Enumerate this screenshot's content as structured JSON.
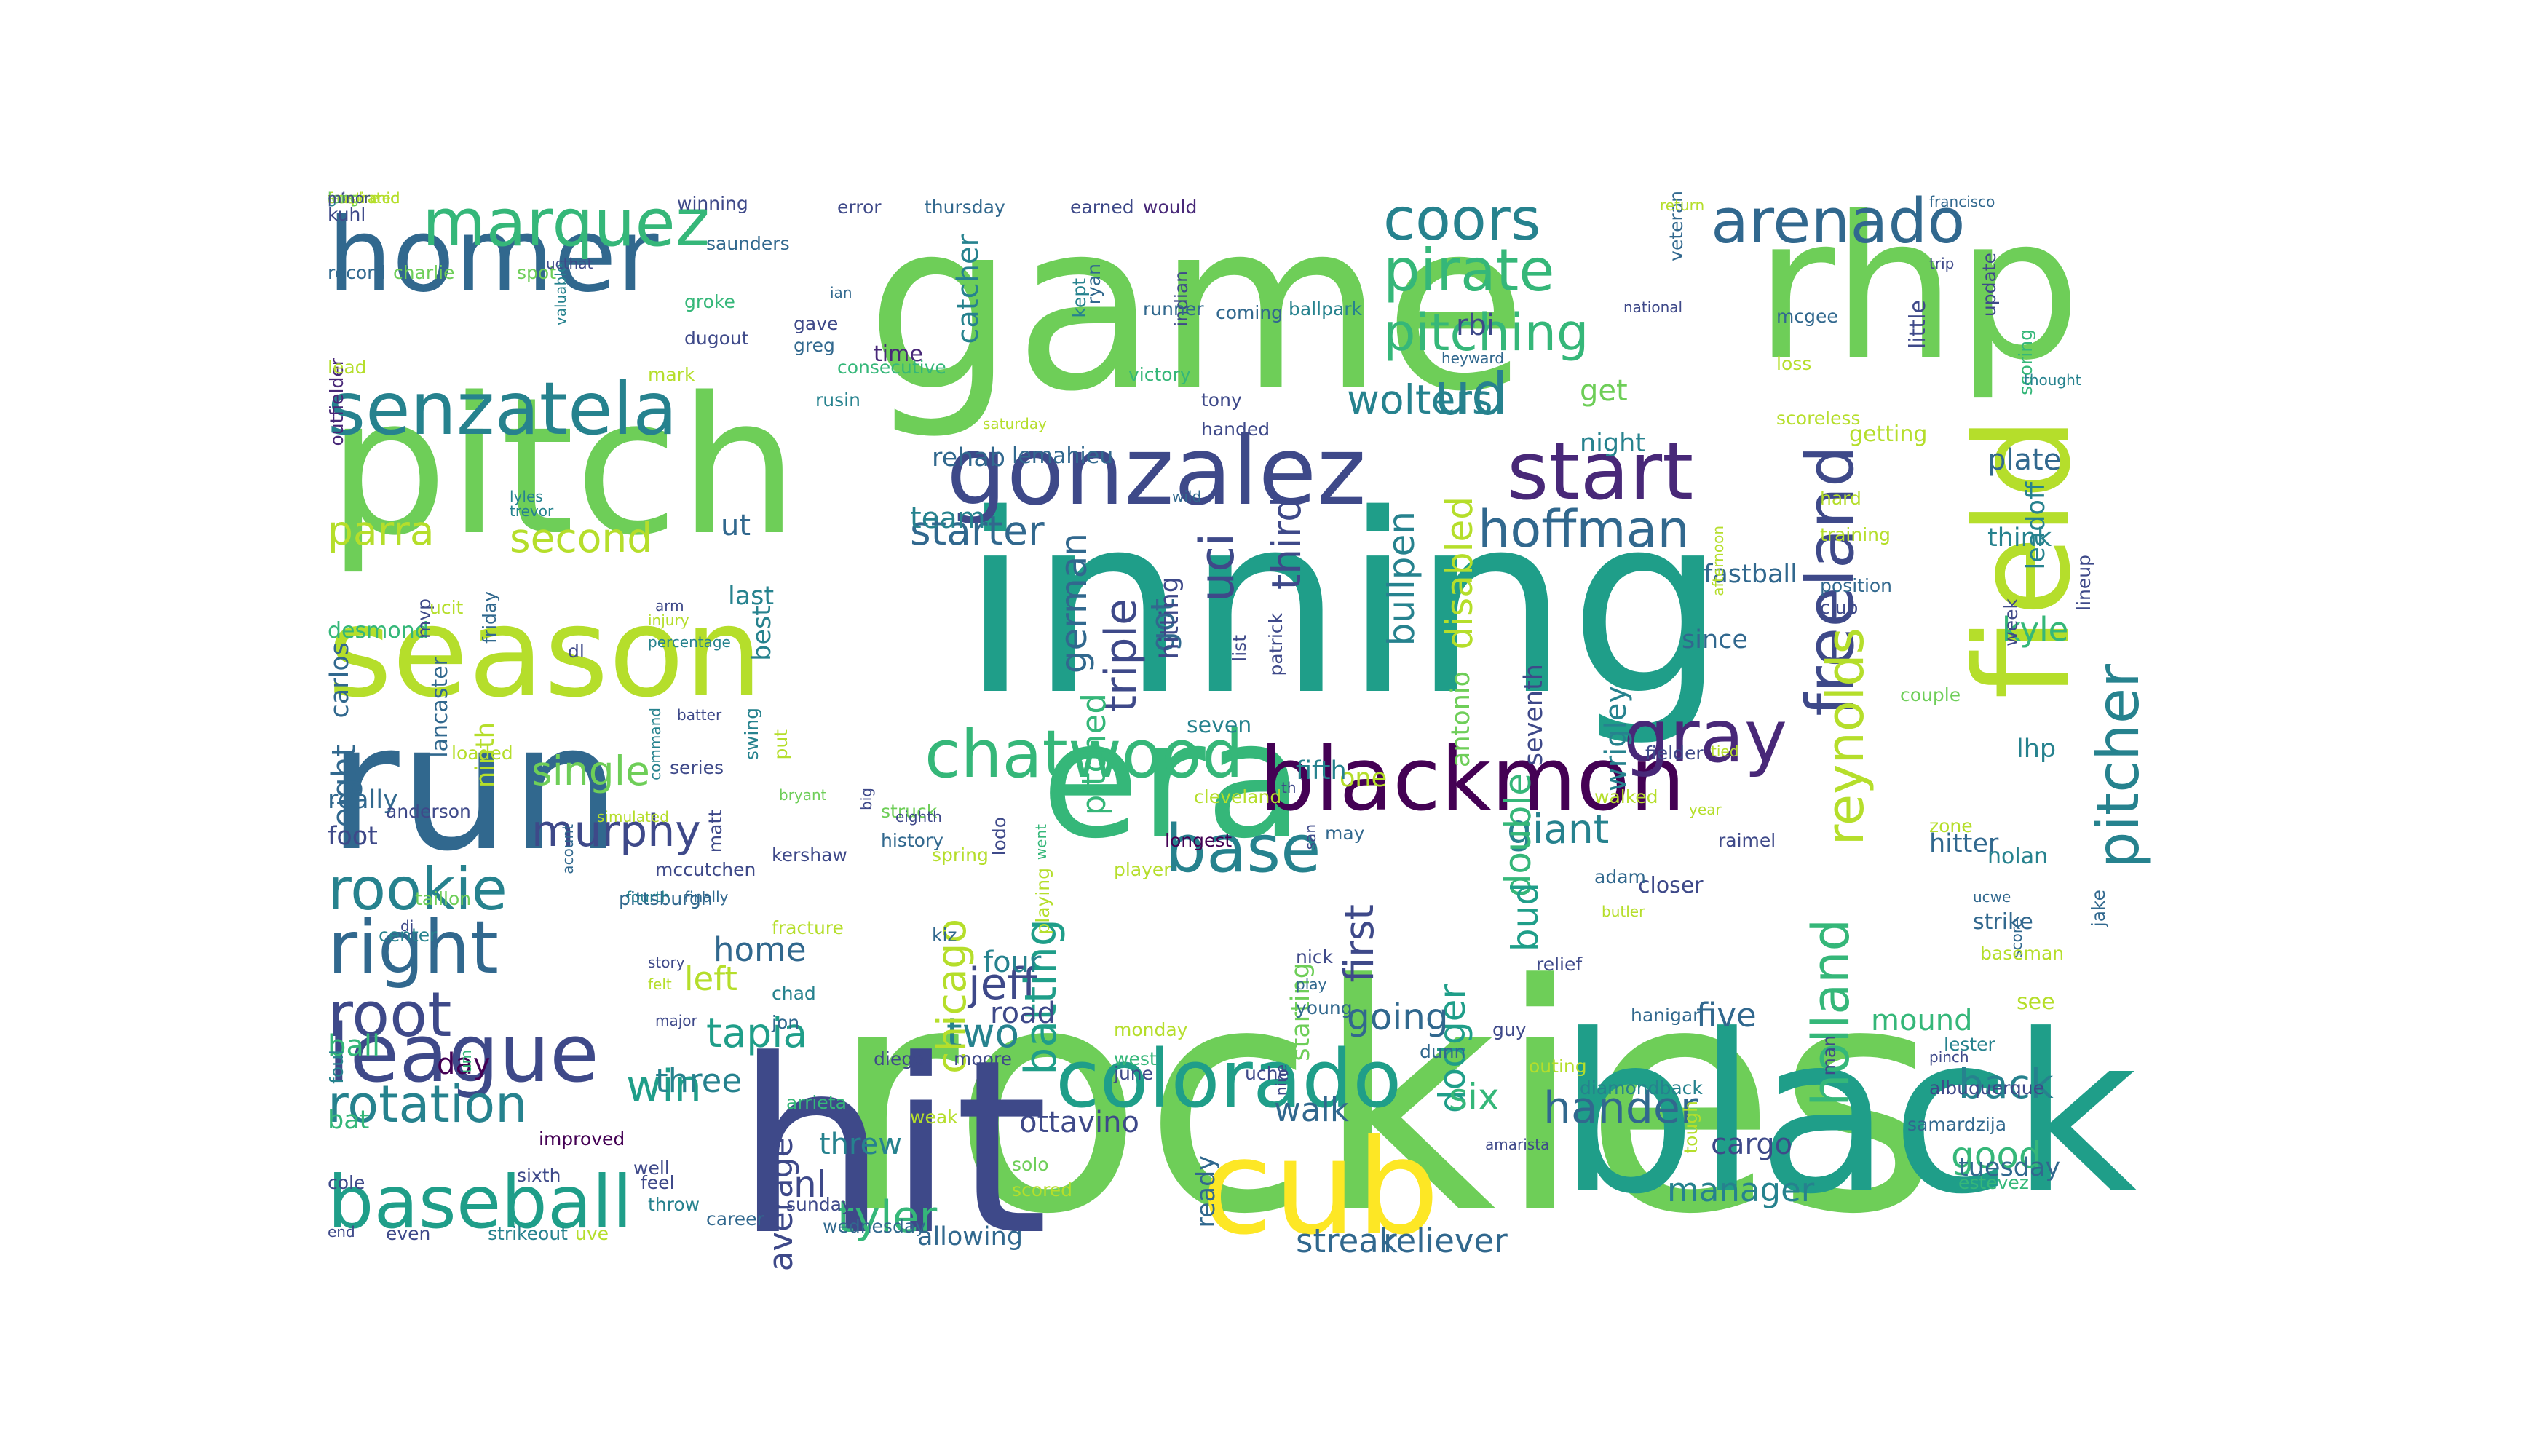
{
  "palette": [
    "#440154",
    "#482878",
    "#3e4989",
    "#31688e",
    "#26828e",
    "#1f9e89",
    "#35b779",
    "#6ece58",
    "#b5de2b",
    "#fde725"
  ],
  "words": [
    {
      "text": "rockies",
      "c": "#6ece58"
    },
    {
      "text": "inning",
      "c": "#1f9e89"
    },
    {
      "text": "game",
      "c": "#6ece58"
    },
    {
      "text": "hit",
      "c": "#3e4989"
    },
    {
      "text": "black",
      "c": "#1f9e89"
    },
    {
      "text": "pitch",
      "c": "#6ece58"
    },
    {
      "text": "rhp",
      "c": "#6ece58"
    },
    {
      "text": "run",
      "c": "#31688e"
    },
    {
      "text": "era",
      "c": "#35b779"
    },
    {
      "text": "cub",
      "c": "#fde725"
    },
    {
      "text": "season",
      "c": "#b5de2b"
    },
    {
      "text": "field",
      "c": "#b5de2b"
    },
    {
      "text": "homer",
      "c": "#31688e"
    },
    {
      "text": "gonzalez",
      "c": "#3e4989"
    },
    {
      "text": "blackmon",
      "c": "#440154"
    },
    {
      "text": "colorado",
      "c": "#1f9e89"
    },
    {
      "text": "league",
      "c": "#3e4989"
    },
    {
      "text": "senzatela",
      "c": "#26828e"
    },
    {
      "text": "start",
      "c": "#482878"
    },
    {
      "text": "baseball",
      "c": "#1f9e89"
    },
    {
      "text": "marquez",
      "c": "#35b779"
    },
    {
      "text": "chatwood",
      "c": "#35b779"
    },
    {
      "text": "right",
      "c": "#31688e"
    },
    {
      "text": "gray",
      "c": "#482878"
    },
    {
      "text": "pitcher",
      "c": "#26828e"
    },
    {
      "text": "holland",
      "c": "#35b779"
    },
    {
      "text": "arenado",
      "c": "#31688e"
    },
    {
      "text": "base",
      "c": "#26828e"
    },
    {
      "text": "freeland",
      "c": "#3e4989"
    },
    {
      "text": "coors",
      "c": "#26828e"
    },
    {
      "text": "pirate",
      "c": "#35b779"
    },
    {
      "text": "pitching",
      "c": "#35b779"
    },
    {
      "text": "rookie",
      "c": "#26828e"
    },
    {
      "text": "root",
      "c": "#3e4989"
    },
    {
      "text": "reynolds",
      "c": "#b5de2b"
    },
    {
      "text": "ud",
      "c": "#26828e"
    },
    {
      "text": "rotation",
      "c": "#26828e"
    },
    {
      "text": "hoffman",
      "c": "#31688e"
    },
    {
      "text": "murphy",
      "c": "#3e4989"
    },
    {
      "text": "tyler",
      "c": "#35b779"
    },
    {
      "text": "hander",
      "c": "#31688e"
    },
    {
      "text": "giant",
      "c": "#26828e"
    },
    {
      "text": "single",
      "c": "#6ece58"
    },
    {
      "text": "jeff",
      "c": "#3e4989"
    },
    {
      "text": "two",
      "c": "#26828e"
    },
    {
      "text": "parra",
      "c": "#b5de2b"
    },
    {
      "text": "second",
      "c": "#b5de2b"
    },
    {
      "text": "wolters",
      "c": "#26828e"
    },
    {
      "text": "starter",
      "c": "#31688e"
    },
    {
      "text": "uci",
      "c": "#3e4989"
    },
    {
      "text": "triple",
      "c": "#3e4989"
    },
    {
      "text": "third",
      "c": "#3e4989"
    },
    {
      "text": "bullpen",
      "c": "#26828e"
    },
    {
      "text": "disabled",
      "c": "#b5de2b"
    },
    {
      "text": "double",
      "c": "#35b779"
    },
    {
      "text": "dodger",
      "c": "#1f9e89"
    },
    {
      "text": "bud",
      "c": "#1f9e89"
    },
    {
      "text": "first",
      "c": "#3e4989"
    },
    {
      "text": "going",
      "c": "#31688e"
    },
    {
      "text": "batting",
      "c": "#1f9e89"
    },
    {
      "text": "chicago",
      "c": "#b5de2b"
    },
    {
      "text": "german",
      "c": "#31688e"
    },
    {
      "text": "pitched",
      "c": "#35b779"
    },
    {
      "text": "win",
      "c": "#1f9e89"
    },
    {
      "text": "threw",
      "c": "#26828e"
    },
    {
      "text": "nl",
      "c": "#3e4989"
    },
    {
      "text": "six",
      "c": "#35b779"
    },
    {
      "text": "walk",
      "c": "#31688e"
    },
    {
      "text": "back",
      "c": "#26828e"
    },
    {
      "text": "good",
      "c": "#35b779"
    },
    {
      "text": "manager",
      "c": "#26828e"
    },
    {
      "text": "reliever",
      "c": "#31688e"
    },
    {
      "text": "streak",
      "c": "#31688e"
    },
    {
      "text": "tuesday",
      "c": "#31688e"
    },
    {
      "text": "cargo",
      "c": "#3e4989"
    },
    {
      "text": "ottavino",
      "c": "#3e4989"
    },
    {
      "text": "five",
      "c": "#31688e"
    },
    {
      "text": "mound",
      "c": "#35b779"
    },
    {
      "text": "strike",
      "c": "#31688e"
    },
    {
      "text": "hitter",
      "c": "#31688e"
    },
    {
      "text": "nolan",
      "c": "#26828e"
    },
    {
      "text": "closer",
      "c": "#3e4989"
    },
    {
      "text": "plate",
      "c": "#31688e"
    },
    {
      "text": "think",
      "c": "#26828e"
    },
    {
      "text": "kyle",
      "c": "#35b779"
    },
    {
      "text": "lhp",
      "c": "#26828e"
    },
    {
      "text": "fastball",
      "c": "#31688e"
    },
    {
      "text": "since",
      "c": "#31688e"
    },
    {
      "text": "get",
      "c": "#6ece58"
    },
    {
      "text": "night",
      "c": "#26828e"
    },
    {
      "text": "rbi",
      "c": "#3e4989"
    },
    {
      "text": "team",
      "c": "#26828e"
    },
    {
      "text": "rehab",
      "c": "#31688e"
    },
    {
      "text": "lemahieu",
      "c": "#31688e"
    },
    {
      "text": "catcher",
      "c": "#26828e"
    },
    {
      "text": "time",
      "c": "#482878"
    },
    {
      "text": "ut",
      "c": "#31688e"
    },
    {
      "text": "last",
      "c": "#26828e"
    },
    {
      "text": "best",
      "c": "#26828e"
    },
    {
      "text": "home",
      "c": "#31688e"
    },
    {
      "text": "left",
      "c": "#b5de2b"
    },
    {
      "text": "tapia",
      "c": "#1f9e89"
    },
    {
      "text": "three",
      "c": "#26828e"
    },
    {
      "text": "four",
      "c": "#26828e"
    },
    {
      "text": "road",
      "c": "#3e4989"
    },
    {
      "text": "bat",
      "c": "#35b779"
    },
    {
      "text": "ball",
      "c": "#35b779"
    },
    {
      "text": "day",
      "c": "#440154"
    },
    {
      "text": "really",
      "c": "#31688e"
    },
    {
      "text": "foot",
      "c": "#3e4989"
    },
    {
      "text": "eight",
      "c": "#31688e"
    },
    {
      "text": "average",
      "c": "#3e4989"
    },
    {
      "text": "one",
      "c": "#b5de2b"
    },
    {
      "text": "seven",
      "c": "#26828e"
    },
    {
      "text": "antonio",
      "c": "#6ece58"
    },
    {
      "text": "seventh",
      "c": "#3e4989"
    },
    {
      "text": "wrigley",
      "c": "#26828e"
    },
    {
      "text": "starting",
      "c": "#6ece58"
    },
    {
      "text": "fifth",
      "c": "#26828e"
    },
    {
      "text": "got",
      "c": "#31688e"
    },
    {
      "text": "hitting",
      "c": "#3e4989"
    },
    {
      "text": "allowing",
      "c": "#31688e"
    },
    {
      "text": "ninth",
      "c": "#b5de2b"
    },
    {
      "text": "carlos",
      "c": "#31688e"
    },
    {
      "text": "desmond",
      "c": "#35b779"
    },
    {
      "text": "lancaster",
      "c": "#31688e"
    },
    {
      "text": "kuhl",
      "c": "#3e4989"
    },
    {
      "text": "winning",
      "c": "#3e4989"
    },
    {
      "text": "error",
      "c": "#3e4989"
    },
    {
      "text": "thursday",
      "c": "#31688e"
    },
    {
      "text": "earned",
      "c": "#3e4989"
    },
    {
      "text": "would",
      "c": "#482878"
    },
    {
      "text": "record",
      "c": "#31688e"
    },
    {
      "text": "charlie",
      "c": "#6ece58"
    },
    {
      "text": "spot",
      "c": "#6ece58"
    },
    {
      "text": "saunders",
      "c": "#31688e"
    },
    {
      "text": "outfielder",
      "c": "#482878"
    },
    {
      "text": "groke",
      "c": "#35b779"
    },
    {
      "text": "dugout",
      "c": "#3e4989"
    },
    {
      "text": "greg",
      "c": "#31688e"
    },
    {
      "text": "gave",
      "c": "#3e4989"
    },
    {
      "text": "lead",
      "c": "#b5de2b"
    },
    {
      "text": "mark",
      "c": "#b5de2b"
    },
    {
      "text": "consecutive",
      "c": "#35b779"
    },
    {
      "text": "ian",
      "c": "#31688e"
    },
    {
      "text": "rusin",
      "c": "#26828e"
    },
    {
      "text": "ryan",
      "c": "#31688e"
    },
    {
      "text": "indian",
      "c": "#3e4989"
    },
    {
      "text": "runner",
      "c": "#31688e"
    },
    {
      "text": "coming",
      "c": "#31688e"
    },
    {
      "text": "ballpark",
      "c": "#26828e"
    },
    {
      "text": "veteran",
      "c": "#31688e"
    },
    {
      "text": "national",
      "c": "#3e4989"
    },
    {
      "text": "return",
      "c": "#b5de2b"
    },
    {
      "text": "francisco",
      "c": "#31688e"
    },
    {
      "text": "update",
      "c": "#3e4989"
    },
    {
      "text": "trip",
      "c": "#3e4989"
    },
    {
      "text": "little",
      "c": "#3e4989"
    },
    {
      "text": "mcgee",
      "c": "#31688e"
    },
    {
      "text": "loss",
      "c": "#b5de2b"
    },
    {
      "text": "victory",
      "c": "#35b779"
    },
    {
      "text": "tony",
      "c": "#3e4989"
    },
    {
      "text": "handed",
      "c": "#3e4989"
    },
    {
      "text": "scoreless",
      "c": "#b5de2b"
    },
    {
      "text": "getting",
      "c": "#b5de2b"
    },
    {
      "text": "scoring",
      "c": "#35b779"
    },
    {
      "text": "thought",
      "c": "#26828e"
    },
    {
      "text": "leadoff",
      "c": "#26828e"
    },
    {
      "text": "lineup",
      "c": "#3e4989"
    },
    {
      "text": "hard",
      "c": "#b5de2b"
    },
    {
      "text": "training",
      "c": "#b5de2b"
    },
    {
      "text": "position",
      "c": "#31688e"
    },
    {
      "text": "club",
      "c": "#3e4989"
    },
    {
      "text": "week",
      "c": "#3e4989"
    },
    {
      "text": "couple",
      "c": "#6ece58"
    },
    {
      "text": "patrick",
      "c": "#3e4989"
    },
    {
      "text": "list",
      "c": "#3e4989"
    },
    {
      "text": "year",
      "c": "#b5de2b"
    },
    {
      "text": "raimel",
      "c": "#3e4989"
    },
    {
      "text": "walked",
      "c": "#b5de2b"
    },
    {
      "text": "cleveland",
      "c": "#b5de2b"
    },
    {
      "text": "th",
      "c": "#3e4989"
    },
    {
      "text": "san",
      "c": "#3e4989"
    },
    {
      "text": "may",
      "c": "#31688e"
    },
    {
      "text": "fielder",
      "c": "#3e4989"
    },
    {
      "text": "zone",
      "c": "#b5de2b"
    },
    {
      "text": "adam",
      "c": "#31688e"
    },
    {
      "text": "butler",
      "c": "#b5de2b"
    },
    {
      "text": "ucwe",
      "c": "#31688e"
    },
    {
      "text": "jake",
      "c": "#31688e"
    },
    {
      "text": "score",
      "c": "#31688e"
    },
    {
      "text": "see",
      "c": "#b5de2b"
    },
    {
      "text": "lester",
      "c": "#26828e"
    },
    {
      "text": "albuquerque",
      "c": "#3e4989"
    },
    {
      "text": "samardzija",
      "c": "#31688e"
    },
    {
      "text": "estevez",
      "c": "#35b779"
    },
    {
      "text": "pinch",
      "c": "#3e4989"
    },
    {
      "text": "baseman",
      "c": "#b5de2b"
    },
    {
      "text": "relief",
      "c": "#3e4989"
    },
    {
      "text": "hanigan",
      "c": "#31688e"
    },
    {
      "text": "man",
      "c": "#3e4989"
    },
    {
      "text": "dunn",
      "c": "#31688e"
    },
    {
      "text": "outing",
      "c": "#b5de2b"
    },
    {
      "text": "diamondback",
      "c": "#26828e"
    },
    {
      "text": "amarista",
      "c": "#3e4989"
    },
    {
      "text": "tough",
      "c": "#b5de2b"
    },
    {
      "text": "guy",
      "c": "#3e4989"
    },
    {
      "text": "nick",
      "c": "#3e4989"
    },
    {
      "text": "play",
      "c": "#31688e"
    },
    {
      "text": "young",
      "c": "#31688e"
    },
    {
      "text": "monday",
      "c": "#b5de2b"
    },
    {
      "text": "west",
      "c": "#35b779"
    },
    {
      "text": "june",
      "c": "#3e4989"
    },
    {
      "text": "uche",
      "c": "#3e4989"
    },
    {
      "text": "ready",
      "c": "#31688e"
    },
    {
      "text": "nine",
      "c": "#3e4989"
    },
    {
      "text": "solo",
      "c": "#6ece58"
    },
    {
      "text": "scored",
      "c": "#b5de2b"
    },
    {
      "text": "player",
      "c": "#b5de2b"
    },
    {
      "text": "longest",
      "c": "#440154"
    },
    {
      "text": "playing",
      "c": "#b5de2b"
    },
    {
      "text": "lodo",
      "c": "#3e4989"
    },
    {
      "text": "went",
      "c": "#35b779"
    },
    {
      "text": "kiz",
      "c": "#31688e"
    },
    {
      "text": "struck",
      "c": "#6ece58"
    },
    {
      "text": "history",
      "c": "#31688e"
    },
    {
      "text": "spring",
      "c": "#b5de2b"
    },
    {
      "text": "eighth",
      "c": "#3e4989"
    },
    {
      "text": "big",
      "c": "#3e4989"
    },
    {
      "text": "kershaw",
      "c": "#3e4989"
    },
    {
      "text": "jon",
      "c": "#31688e"
    },
    {
      "text": "diego",
      "c": "#3e4989"
    },
    {
      "text": "moore",
      "c": "#3e4989"
    },
    {
      "text": "weak",
      "c": "#b5de2b"
    },
    {
      "text": "arrieta",
      "c": "#35b779"
    },
    {
      "text": "sunday",
      "c": "#3e4989"
    },
    {
      "text": "wednesday",
      "c": "#31688e"
    },
    {
      "text": "career",
      "c": "#31688e"
    },
    {
      "text": "well",
      "c": "#3e4989"
    },
    {
      "text": "feel",
      "c": "#3e4989"
    },
    {
      "text": "throw",
      "c": "#26828e"
    },
    {
      "text": "sixth",
      "c": "#3e4989"
    },
    {
      "text": "improved",
      "c": "#440154"
    },
    {
      "text": "um",
      "c": "#35b779"
    },
    {
      "text": "cole",
      "c": "#3e4989"
    },
    {
      "text": "foul",
      "c": "#26828e"
    },
    {
      "text": "end",
      "c": "#3e4989"
    },
    {
      "text": "even",
      "c": "#3e4989"
    },
    {
      "text": "strikeout",
      "c": "#26828e"
    },
    {
      "text": "uve",
      "c": "#b5de2b"
    },
    {
      "text": "major",
      "c": "#3e4989"
    },
    {
      "text": "felt",
      "c": "#b5de2b"
    },
    {
      "text": "story",
      "c": "#3e4989"
    },
    {
      "text": "pittsburgh",
      "c": "#31688e"
    },
    {
      "text": "finally",
      "c": "#31688e"
    },
    {
      "text": "fourth",
      "c": "#26828e"
    },
    {
      "text": "taillon",
      "c": "#6ece58"
    },
    {
      "text": "center",
      "c": "#26828e"
    },
    {
      "text": "dj",
      "c": "#3e4989"
    },
    {
      "text": "mccutchen",
      "c": "#3e4989"
    },
    {
      "text": "matt",
      "c": "#3e4989"
    },
    {
      "text": "series",
      "c": "#3e4989"
    },
    {
      "text": "simulated",
      "c": "#b5de2b"
    },
    {
      "text": "loaded",
      "c": "#b5de2b"
    },
    {
      "text": "acount",
      "c": "#31688e"
    },
    {
      "text": "anderson",
      "c": "#3e4989"
    },
    {
      "text": "mvp",
      "c": "#3e4989"
    },
    {
      "text": "dl",
      "c": "#3e4989"
    },
    {
      "text": "friday",
      "c": "#31688e"
    },
    {
      "text": "ucit",
      "c": "#b5de2b"
    },
    {
      "text": "percentage",
      "c": "#26828e"
    },
    {
      "text": "arm",
      "c": "#3e4989"
    },
    {
      "text": "injury",
      "c": "#b5de2b"
    },
    {
      "text": "command",
      "c": "#26828e"
    },
    {
      "text": "batter",
      "c": "#3e4989"
    },
    {
      "text": "swing",
      "c": "#26828e"
    },
    {
      "text": "bryant",
      "c": "#6ece58"
    },
    {
      "text": "put",
      "c": "#b5de2b"
    },
    {
      "text": "lyles",
      "c": "#26828e"
    },
    {
      "text": "trevor",
      "c": "#26828e"
    },
    {
      "text": "valuable",
      "c": "#26828e"
    },
    {
      "text": "kept",
      "c": "#26828e"
    },
    {
      "text": "saturday",
      "c": "#b5de2b"
    },
    {
      "text": "heyward",
      "c": "#31688e"
    },
    {
      "text": "wild",
      "c": "#31688e"
    },
    {
      "text": "afternoon",
      "c": "#b5de2b"
    },
    {
      "text": "tied",
      "c": "#b5de2b"
    },
    {
      "text": "ucthat",
      "c": "#3e4989"
    },
    {
      "text": "fracture",
      "c": "#b5de2b"
    },
    {
      "text": "chad",
      "c": "#26828e"
    },
    {
      "text": "pnc",
      "c": "#3e4989"
    },
    {
      "text": "umpire",
      "c": "#b5de2b"
    },
    {
      "text": "go",
      "c": "#26828e"
    },
    {
      "text": "let",
      "c": "#3e4989"
    },
    {
      "text": "frustrated",
      "c": "#b5de2b"
    },
    {
      "text": "mechanic",
      "c": "#b5de2b"
    },
    {
      "text": "ace",
      "c": "#b5de2b"
    },
    {
      "text": "long",
      "c": "#6ece58"
    },
    {
      "text": "minor",
      "c": "#3e4989"
    }
  ]
}
